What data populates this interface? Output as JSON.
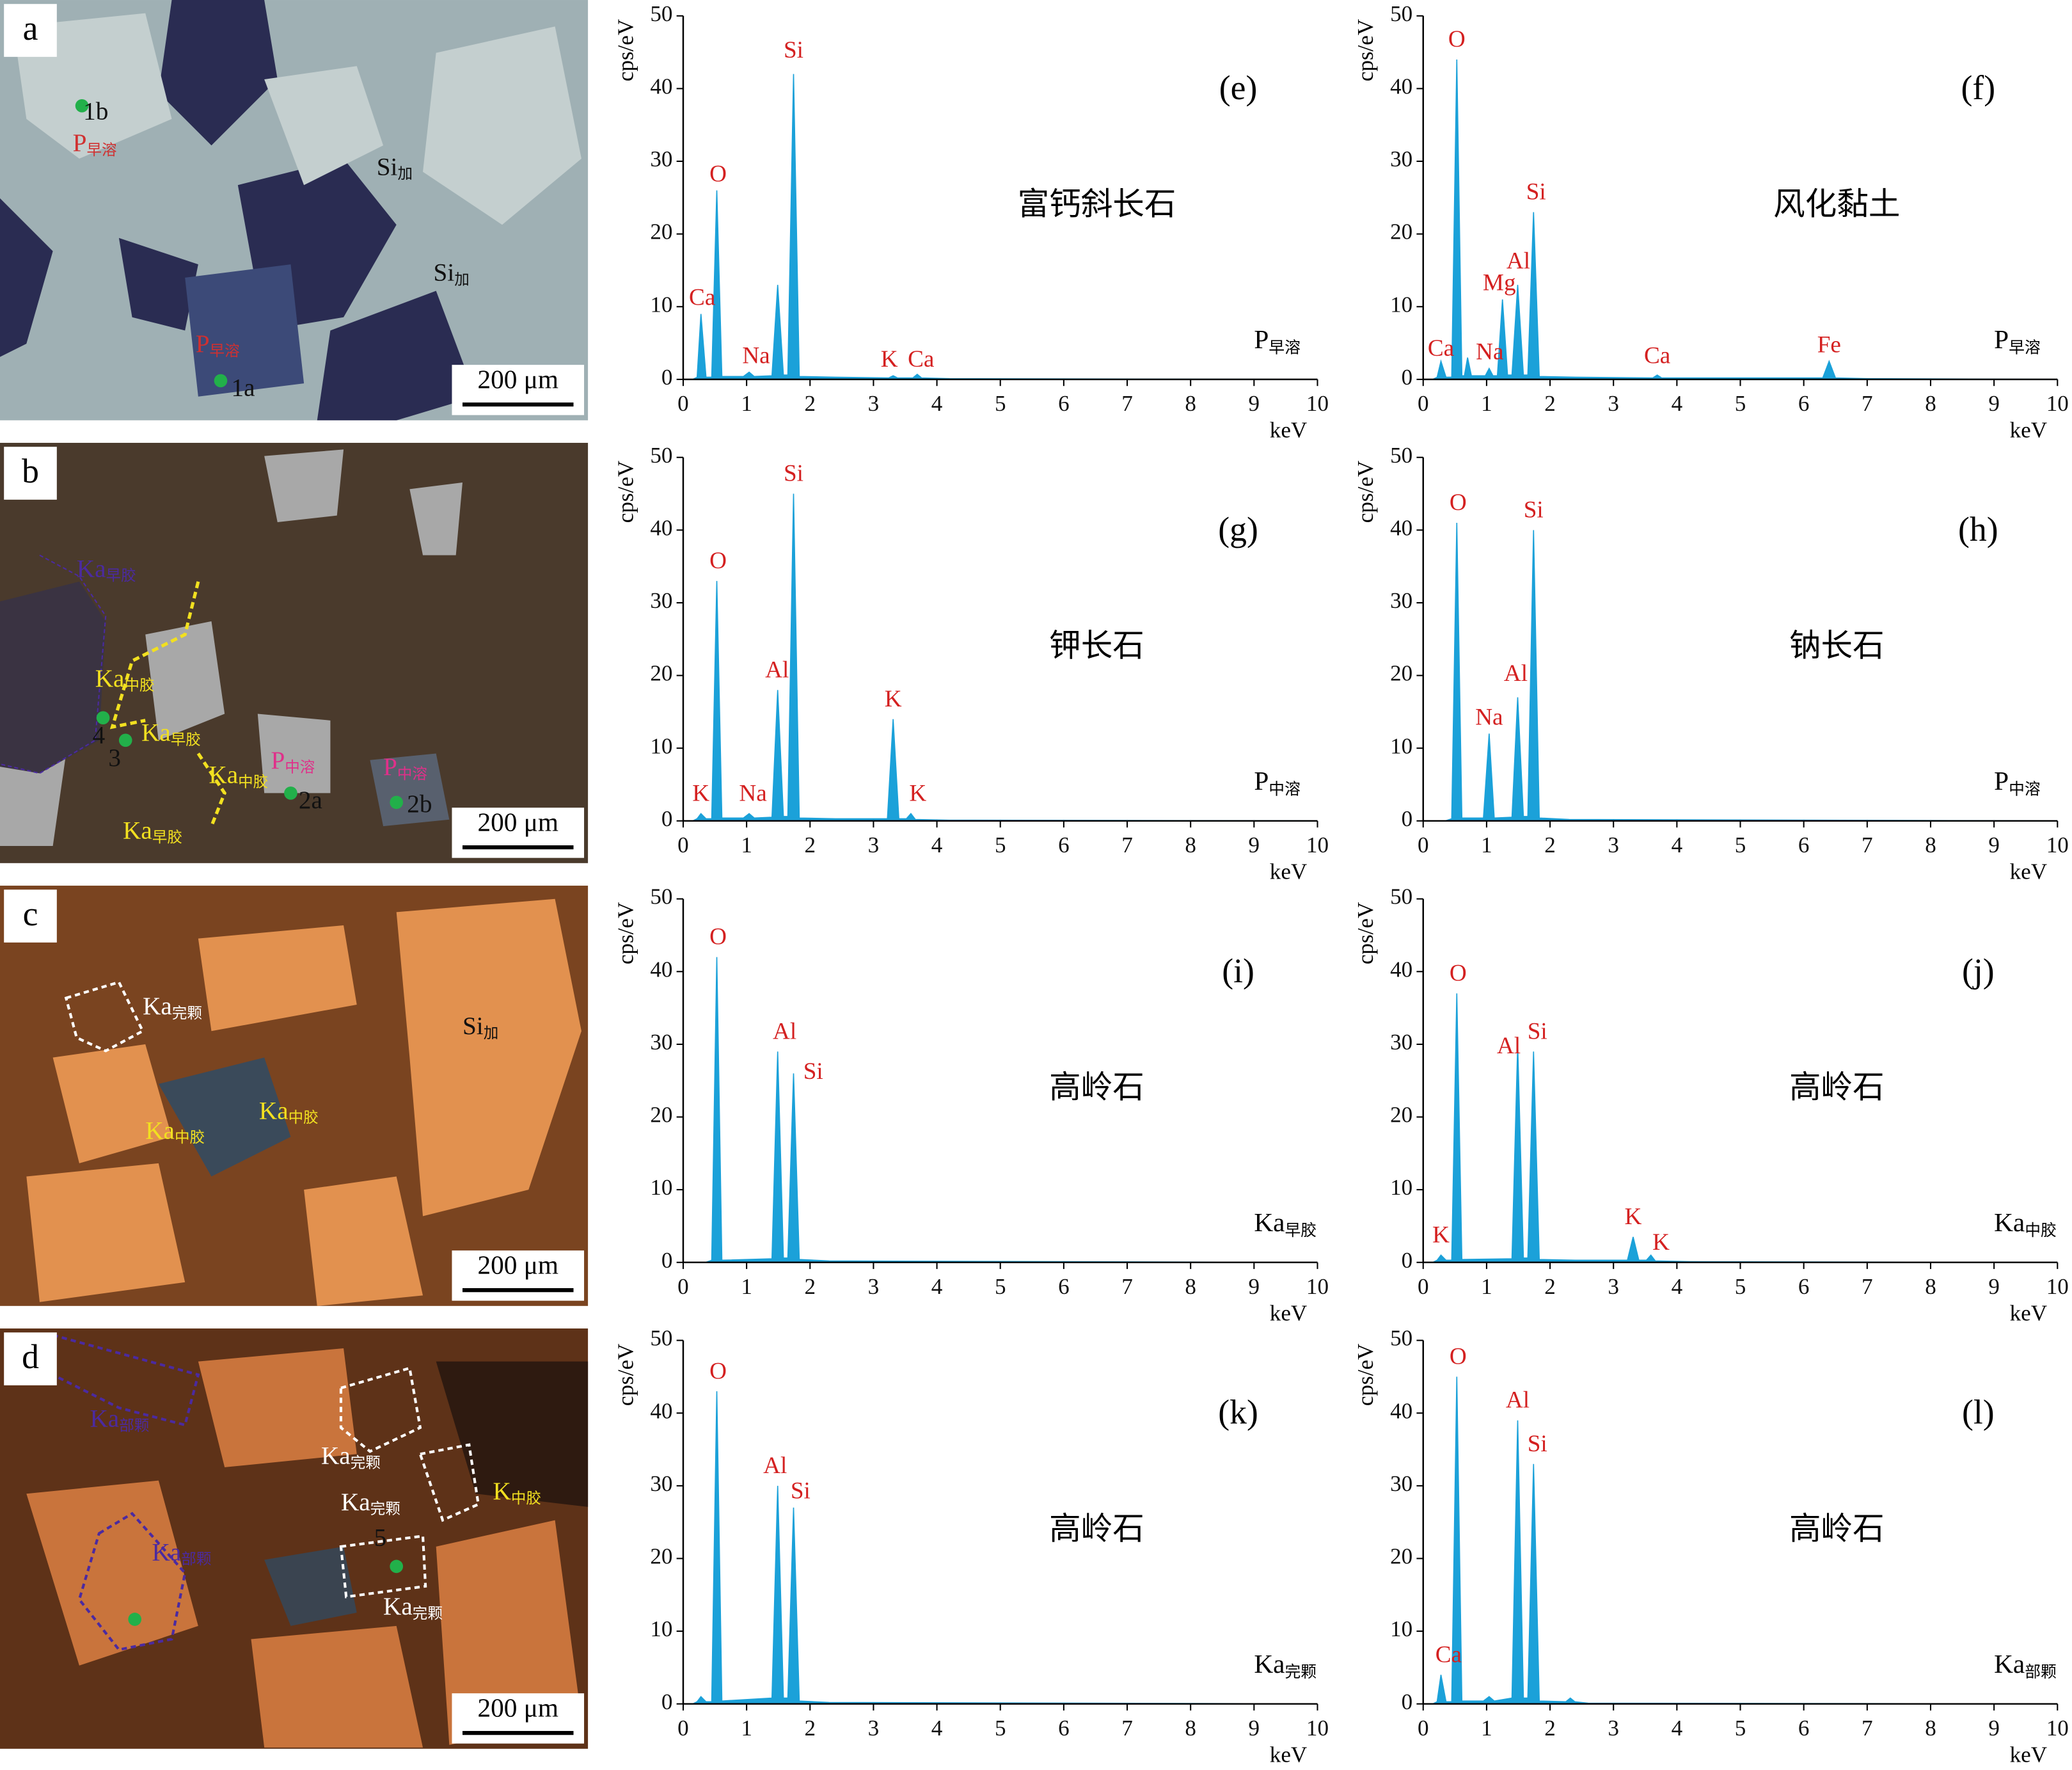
{
  "micrographs": [
    {
      "letter": "a",
      "scale": "200 μm",
      "labels": [
        {
          "text": "1b",
          "color": "#111"
        },
        {
          "text": "P",
          "sub": "早溶",
          "color": "#d03030"
        },
        {
          "text": "Si",
          "sub": "加",
          "color": "#111"
        },
        {
          "text": "Si",
          "sub": "加",
          "color": "#111"
        },
        {
          "text": "P",
          "sub": "早溶",
          "color": "#d03030"
        },
        {
          "text": "1a",
          "color": "#111"
        }
      ]
    },
    {
      "letter": "b",
      "scale": "200 μm",
      "labels": [
        {
          "text": "Ka",
          "sub": "早胶",
          "color": "#4b2aa0"
        },
        {
          "text": "Ka",
          "sub": "中胶",
          "color": "#f2e020"
        },
        {
          "text": "Ka",
          "sub": "早胶",
          "color": "#f2e020"
        },
        {
          "text": "4",
          "color": "#111"
        },
        {
          "text": "3",
          "color": "#111"
        },
        {
          "text": "Ka",
          "sub": "中胶",
          "color": "#f2e020"
        },
        {
          "text": "P",
          "sub": "中溶",
          "color": "#e0308a"
        },
        {
          "text": "2a",
          "color": "#111"
        },
        {
          "text": "P",
          "sub": "中溶",
          "color": "#e0308a"
        },
        {
          "text": "2b",
          "color": "#111"
        },
        {
          "text": "Ka",
          "sub": "早胶",
          "color": "#f2e020"
        }
      ]
    },
    {
      "letter": "c",
      "scale": "200 μm",
      "labels": [
        {
          "text": "Ka",
          "sub": "完颗",
          "color": "#ffffff"
        },
        {
          "text": "Si",
          "sub": "加",
          "color": "#111"
        },
        {
          "text": "Ka",
          "sub": "中胶",
          "color": "#f2e020"
        },
        {
          "text": "Ka",
          "sub": "中胶",
          "color": "#f2e020"
        }
      ]
    },
    {
      "letter": "d",
      "scale": "200 μm",
      "labels": [
        {
          "text": "Ka",
          "sub": "部颗",
          "color": "#4b2aa0"
        },
        {
          "text": "Ka",
          "sub": "完颗",
          "color": "#ffffff"
        },
        {
          "text": "Ka",
          "sub": "完颗",
          "color": "#ffffff"
        },
        {
          "text": "K",
          "sub": "中胶",
          "color": "#f2e020"
        },
        {
          "text": "5",
          "color": "#111"
        },
        {
          "text": "Ka",
          "sub": "完颗",
          "color": "#ffffff"
        },
        {
          "text": "Ka",
          "sub": "部颗",
          "color": "#4b2aa0"
        }
      ]
    }
  ],
  "chart_data": [
    {
      "type": "area",
      "label": "(e)",
      "title": "富钙斜长石",
      "sample": "P",
      "sample_sub": "早溶",
      "x_label": "keV",
      "y_label": "cps/eV",
      "xlim": [
        0,
        10
      ],
      "ylim": [
        0,
        50
      ],
      "xticks": [
        0,
        1,
        2,
        3,
        4,
        5,
        6,
        7,
        8,
        9,
        10
      ],
      "yticks": [
        0,
        10,
        20,
        30,
        40,
        50
      ],
      "color": "#1ba1d9",
      "annotation_color": "#d42020",
      "x": [
        0.15,
        0.22,
        0.28,
        0.36,
        0.45,
        0.53,
        0.61,
        0.95,
        1.04,
        1.12,
        1.4,
        1.49,
        1.58,
        1.65,
        1.74,
        1.83,
        2.4,
        3.24,
        3.31,
        3.38,
        3.62,
        3.69,
        3.76,
        4.2,
        10
      ],
      "values": [
        0,
        0.3,
        9,
        0.3,
        0.3,
        26,
        0.4,
        0.4,
        1,
        0.4,
        0.5,
        13,
        0.6,
        0.6,
        42,
        0.4,
        0.3,
        0.2,
        0.5,
        0.2,
        0.2,
        0.7,
        0.2,
        0.1,
        0
      ],
      "annotations": [
        {
          "text": "Ca",
          "x": 0.3,
          "y": 11
        },
        {
          "text": "O",
          "x": 0.55,
          "y": 28
        },
        {
          "text": "Na",
          "x": 1.15,
          "y": 3
        },
        {
          "text": "Si",
          "x": 1.74,
          "y": 45
        },
        {
          "text": "K",
          "x": 3.25,
          "y": 2.5
        },
        {
          "text": "Ca",
          "x": 3.75,
          "y": 2.5
        }
      ]
    },
    {
      "type": "area",
      "label": "(f)",
      "title": "风化黏土",
      "sample": "P",
      "sample_sub": "早溶",
      "x_label": "keV",
      "y_label": "cps/eV",
      "xlim": [
        0,
        10
      ],
      "ylim": [
        0,
        50
      ],
      "xticks": [
        0,
        1,
        2,
        3,
        4,
        5,
        6,
        7,
        8,
        9,
        10
      ],
      "yticks": [
        0,
        10,
        20,
        30,
        40,
        50
      ],
      "color": "#1ba1d9",
      "annotation_color": "#d42020",
      "x": [
        0.15,
        0.22,
        0.28,
        0.36,
        0.45,
        0.53,
        0.61,
        0.65,
        0.7,
        0.76,
        0.98,
        1.04,
        1.1,
        1.17,
        1.25,
        1.33,
        1.4,
        1.49,
        1.58,
        1.65,
        1.74,
        1.83,
        2.4,
        3.62,
        3.69,
        3.76,
        6.3,
        6.4,
        6.5,
        7,
        10
      ],
      "values": [
        0,
        0.3,
        2.5,
        0.3,
        0.3,
        44,
        0.5,
        0.5,
        3,
        0.5,
        0.5,
        1.5,
        0.5,
        0.5,
        11,
        0.6,
        0.6,
        13,
        0.6,
        0.6,
        23,
        0.4,
        0.3,
        0.2,
        0.6,
        0.2,
        0.2,
        2.5,
        0.2,
        0.1,
        0
      ],
      "annotations": [
        {
          "text": "Ca",
          "x": 0.28,
          "y": 4
        },
        {
          "text": "O",
          "x": 0.53,
          "y": 46.5
        },
        {
          "text": "Na",
          "x": 1.05,
          "y": 3.5
        },
        {
          "text": "Mg",
          "x": 1.2,
          "y": 13
        },
        {
          "text": "Al",
          "x": 1.5,
          "y": 16
        },
        {
          "text": "Si",
          "x": 1.78,
          "y": 25.5
        },
        {
          "text": "Ca",
          "x": 3.69,
          "y": 3
        },
        {
          "text": "Fe",
          "x": 6.4,
          "y": 4.5
        }
      ]
    },
    {
      "type": "area",
      "label": "(g)",
      "title": "钾长石",
      "sample": "P",
      "sample_sub": "中溶",
      "x_label": "keV",
      "y_label": "cps/eV",
      "xlim": [
        0,
        10
      ],
      "ylim": [
        0,
        50
      ],
      "xticks": [
        0,
        1,
        2,
        3,
        4,
        5,
        6,
        7,
        8,
        9,
        10
      ],
      "yticks": [
        0,
        10,
        20,
        30,
        40,
        50
      ],
      "color": "#1ba1d9",
      "annotation_color": "#d42020",
      "x": [
        0.15,
        0.22,
        0.28,
        0.36,
        0.45,
        0.53,
        0.61,
        0.95,
        1.04,
        1.12,
        1.4,
        1.49,
        1.58,
        1.65,
        1.74,
        1.83,
        2.4,
        3.22,
        3.31,
        3.4,
        3.52,
        3.59,
        3.66,
        4.2,
        10
      ],
      "values": [
        0,
        0.3,
        1,
        0.3,
        0.3,
        33,
        0.4,
        0.4,
        1,
        0.4,
        0.5,
        18,
        0.6,
        0.6,
        45,
        0.4,
        0.3,
        0.3,
        14,
        0.3,
        0.3,
        1,
        0.2,
        0.1,
        0
      ],
      "annotations": [
        {
          "text": "K",
          "x": 0.28,
          "y": 3.5
        },
        {
          "text": "O",
          "x": 0.55,
          "y": 35.5
        },
        {
          "text": "Na",
          "x": 1.1,
          "y": 3.5
        },
        {
          "text": "Al",
          "x": 1.48,
          "y": 20.5
        },
        {
          "text": "Si",
          "x": 1.74,
          "y": 47.5
        },
        {
          "text": "K",
          "x": 3.31,
          "y": 16.5
        },
        {
          "text": "K",
          "x": 3.7,
          "y": 3.5
        }
      ]
    },
    {
      "type": "area",
      "label": "(h)",
      "title": "钠长石",
      "sample": "P",
      "sample_sub": "中溶",
      "x_label": "keV",
      "y_label": "cps/eV",
      "xlim": [
        0,
        10
      ],
      "ylim": [
        0,
        50
      ],
      "xticks": [
        0,
        1,
        2,
        3,
        4,
        5,
        6,
        7,
        8,
        9,
        10
      ],
      "yticks": [
        0,
        10,
        20,
        30,
        40,
        50
      ],
      "color": "#1ba1d9",
      "annotation_color": "#d42020",
      "x": [
        0.35,
        0.45,
        0.53,
        0.61,
        0.95,
        1.04,
        1.12,
        1.4,
        1.49,
        1.58,
        1.65,
        1.74,
        1.83,
        2.3,
        10
      ],
      "values": [
        0,
        0.3,
        41,
        0.4,
        0.4,
        12,
        0.4,
        0.5,
        17,
        0.6,
        0.6,
        40,
        0.4,
        0.2,
        0
      ],
      "annotations": [
        {
          "text": "O",
          "x": 0.55,
          "y": 43.5
        },
        {
          "text": "Na",
          "x": 1.04,
          "y": 14
        },
        {
          "text": "Al",
          "x": 1.46,
          "y": 20
        },
        {
          "text": "Si",
          "x": 1.74,
          "y": 42.5
        }
      ]
    },
    {
      "type": "area",
      "label": "(i)",
      "title": "高岭石",
      "sample": "Ka",
      "sample_sub": "早胶",
      "x_label": "keV",
      "y_label": "cps/eV",
      "xlim": [
        0,
        10
      ],
      "ylim": [
        0,
        50
      ],
      "xticks": [
        0,
        1,
        2,
        3,
        4,
        5,
        6,
        7,
        8,
        9,
        10
      ],
      "yticks": [
        0,
        10,
        20,
        30,
        40,
        50
      ],
      "color": "#1ba1d9",
      "annotation_color": "#d42020",
      "x": [
        0.35,
        0.45,
        0.53,
        0.61,
        1.4,
        1.49,
        1.58,
        1.65,
        1.74,
        1.83,
        2.3,
        10
      ],
      "values": [
        0,
        0.3,
        42,
        0.3,
        0.5,
        29,
        0.6,
        0.6,
        26,
        0.4,
        0.2,
        0
      ],
      "annotations": [
        {
          "text": "O",
          "x": 0.55,
          "y": 44.5
        },
        {
          "text": "Al",
          "x": 1.6,
          "y": 31.5
        },
        {
          "text": "Si",
          "x": 2.05,
          "y": 26
        }
      ]
    },
    {
      "type": "area",
      "label": "(j)",
      "title": "高岭石",
      "sample": "Ka",
      "sample_sub": "中胶",
      "x_label": "keV",
      "y_label": "cps/eV",
      "xlim": [
        0,
        10
      ],
      "ylim": [
        0,
        50
      ],
      "xticks": [
        0,
        1,
        2,
        3,
        4,
        5,
        6,
        7,
        8,
        9,
        10
      ],
      "yticks": [
        0,
        10,
        20,
        30,
        40,
        50
      ],
      "color": "#1ba1d9",
      "annotation_color": "#d42020",
      "x": [
        0.15,
        0.22,
        0.28,
        0.36,
        0.45,
        0.53,
        0.61,
        1.4,
        1.49,
        1.58,
        1.65,
        1.74,
        1.83,
        2.4,
        3.22,
        3.31,
        3.4,
        3.52,
        3.59,
        3.66,
        4.2,
        10
      ],
      "values": [
        0,
        0.3,
        1,
        0.3,
        0.3,
        37,
        0.4,
        0.5,
        30,
        0.6,
        0.6,
        29,
        0.4,
        0.3,
        0.3,
        3.5,
        0.3,
        0.3,
        1,
        0.2,
        0.1,
        0
      ],
      "annotations": [
        {
          "text": "K",
          "x": 0.28,
          "y": 3.5
        },
        {
          "text": "O",
          "x": 0.55,
          "y": 39.5
        },
        {
          "text": "Al",
          "x": 1.35,
          "y": 29.5
        },
        {
          "text": "Si",
          "x": 1.8,
          "y": 31.5
        },
        {
          "text": "K",
          "x": 3.31,
          "y": 6
        },
        {
          "text": "K",
          "x": 3.75,
          "y": 2.5
        }
      ]
    },
    {
      "type": "area",
      "label": "(k)",
      "title": "高岭石",
      "sample": "Ka",
      "sample_sub": "完颗",
      "x_label": "keV",
      "y_label": "cps/eV",
      "xlim": [
        0,
        10
      ],
      "ylim": [
        0,
        50
      ],
      "xticks": [
        0,
        1,
        2,
        3,
        4,
        5,
        6,
        7,
        8,
        9,
        10
      ],
      "yticks": [
        0,
        10,
        20,
        30,
        40,
        50
      ],
      "color": "#1ba1d9",
      "annotation_color": "#d42020",
      "x": [
        0.15,
        0.22,
        0.28,
        0.36,
        0.45,
        0.53,
        0.61,
        1.4,
        1.49,
        1.58,
        1.65,
        1.74,
        1.83,
        2.3,
        10
      ],
      "values": [
        0,
        0.3,
        1,
        0.3,
        0.3,
        43,
        0.4,
        0.8,
        30,
        0.8,
        0.8,
        27,
        0.4,
        0.2,
        0
      ],
      "annotations": [
        {
          "text": "O",
          "x": 0.55,
          "y": 45.5
        },
        {
          "text": "Al",
          "x": 1.45,
          "y": 32.5
        },
        {
          "text": "Si",
          "x": 1.85,
          "y": 29
        }
      ]
    },
    {
      "type": "area",
      "label": "(l)",
      "title": "高岭石",
      "sample": "Ka",
      "sample_sub": "部颗",
      "x_label": "keV",
      "y_label": "cps/eV",
      "xlim": [
        0,
        10
      ],
      "ylim": [
        0,
        50
      ],
      "xticks": [
        0,
        1,
        2,
        3,
        4,
        5,
        6,
        7,
        8,
        9,
        10
      ],
      "yticks": [
        0,
        10,
        20,
        30,
        40,
        50
      ],
      "color": "#1ba1d9",
      "annotation_color": "#d42020",
      "x": [
        0.15,
        0.22,
        0.28,
        0.36,
        0.45,
        0.53,
        0.61,
        0.95,
        1.04,
        1.12,
        1.4,
        1.49,
        1.58,
        1.65,
        1.74,
        1.83,
        2.25,
        2.32,
        2.39,
        2.6,
        10
      ],
      "values": [
        0,
        0.3,
        4,
        0.3,
        0.3,
        45,
        0.4,
        0.4,
        1,
        0.4,
        0.8,
        39,
        0.8,
        0.8,
        33,
        0.4,
        0.3,
        0.8,
        0.3,
        0.1,
        0
      ],
      "annotations": [
        {
          "text": "Ca",
          "x": 0.4,
          "y": 6.5
        },
        {
          "text": "O",
          "x": 0.55,
          "y": 47.5
        },
        {
          "text": "Al",
          "x": 1.49,
          "y": 41.5
        },
        {
          "text": "Si",
          "x": 1.8,
          "y": 35.5
        }
      ]
    }
  ]
}
